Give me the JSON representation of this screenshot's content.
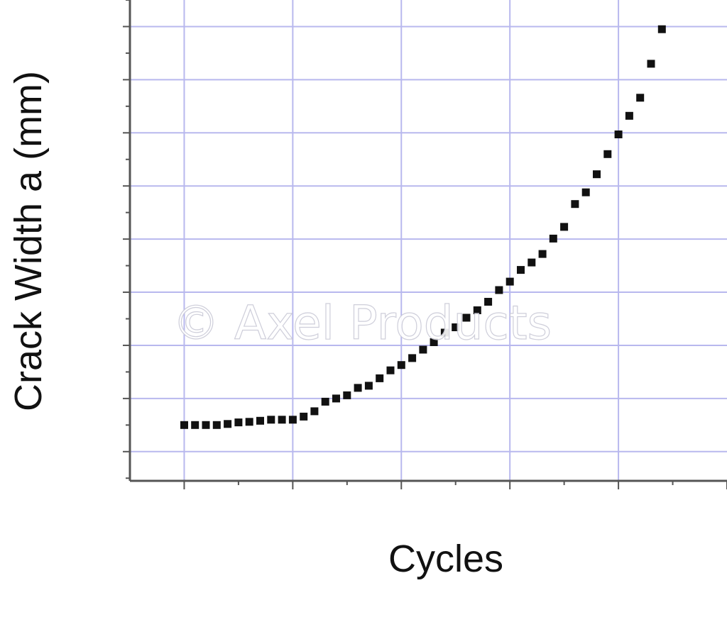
{
  "chart_data": {
    "type": "scatter",
    "xlabel": "Cycles",
    "ylabel": "Crack Width a (mm)",
    "x_tick_labels": [],
    "y_tick_labels": [],
    "grid": true,
    "xlim": [
      -0.5,
      5.0
    ],
    "ylim": [
      -0.55,
      8.5
    ],
    "series": [
      {
        "marker": "square",
        "color": "#111111",
        "points": [
          [
            0.0,
            0.5
          ],
          [
            0.1,
            0.5
          ],
          [
            0.2,
            0.5
          ],
          [
            0.3,
            0.5
          ],
          [
            0.4,
            0.52
          ],
          [
            0.5,
            0.55
          ],
          [
            0.6,
            0.56
          ],
          [
            0.7,
            0.58
          ],
          [
            0.8,
            0.6
          ],
          [
            0.9,
            0.6
          ],
          [
            1.0,
            0.6
          ],
          [
            1.1,
            0.66
          ],
          [
            1.2,
            0.76
          ],
          [
            1.3,
            0.94
          ],
          [
            1.4,
            1.0
          ],
          [
            1.5,
            1.06
          ],
          [
            1.6,
            1.2
          ],
          [
            1.7,
            1.24
          ],
          [
            1.8,
            1.38
          ],
          [
            1.9,
            1.53
          ],
          [
            2.0,
            1.63
          ],
          [
            2.1,
            1.76
          ],
          [
            2.2,
            1.92
          ],
          [
            2.3,
            2.06
          ],
          [
            2.4,
            2.24
          ],
          [
            2.5,
            2.34
          ],
          [
            2.6,
            2.52
          ],
          [
            2.7,
            2.66
          ],
          [
            2.8,
            2.82
          ],
          [
            2.9,
            3.04
          ],
          [
            3.0,
            3.2
          ],
          [
            3.1,
            3.42
          ],
          [
            3.2,
            3.56
          ],
          [
            3.3,
            3.72
          ],
          [
            3.4,
            4.01
          ],
          [
            3.5,
            4.23
          ],
          [
            3.6,
            4.66
          ],
          [
            3.7,
            4.88
          ],
          [
            3.8,
            5.22
          ],
          [
            3.9,
            5.6
          ],
          [
            4.0,
            5.97
          ],
          [
            4.1,
            6.32
          ],
          [
            4.2,
            6.66
          ],
          [
            4.3,
            7.3
          ],
          [
            4.4,
            7.95
          ]
        ]
      }
    ]
  },
  "watermark": "© Axel Products",
  "colors": {
    "grid": "#b8b8ee",
    "axis": "#555555",
    "marker": "#111111"
  }
}
